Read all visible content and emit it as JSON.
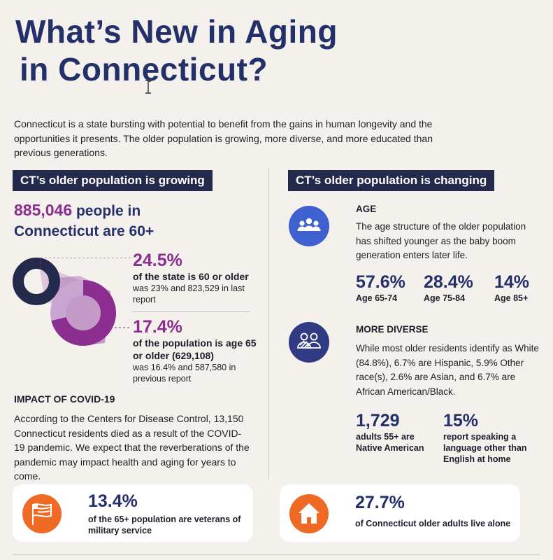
{
  "title": {
    "line1": "What’s New in Aging",
    "line2": "in Connecticut?"
  },
  "intro": "Connecticut is a state bursting with potential to benefit from the gains in human longevity and the opportunities it presents. The older population is growing, more diverse, and more educated than previous generations.",
  "left": {
    "heading": "CT’s older population is growing",
    "count_number": "885,046",
    "count_text_a": "people in",
    "count_text_b": "Connecticut are 60+",
    "stat1": {
      "pct": "24.5%",
      "bold": "of the state is 60 or older",
      "small": "was 23% and 823,529 in last report",
      "value": 24.5
    },
    "stat2": {
      "pct": "17.4%",
      "bold": "of the population is age 65 or older (629,108)",
      "small": "was 16.4% and 587,580 in previous report",
      "value": 17.4
    },
    "covid": {
      "heading": "IMPACT OF COVID-19",
      "body": "According to the Centers for Disease Control, 13,150 Connecticut residents died as a result of the COVID-19 pandemic. We expect that the reverberations of the pandemic may impact health and aging for years to come."
    }
  },
  "right": {
    "heading": "CT’s older population is changing",
    "age": {
      "heading": "AGE",
      "text": "The age structure of the older population has shifted younger as the baby boom generation enters later life.",
      "stats": [
        {
          "pct": "57.6%",
          "label": "Age 65-74"
        },
        {
          "pct": "28.4%",
          "label": "Age 75-84"
        },
        {
          "pct": "14%",
          "label": "Age 85+"
        }
      ]
    },
    "diverse": {
      "heading": "MORE DIVERSE",
      "text": "While most older residents identify as White (84.8%), 6.7% are Hispanic, 5.9% Other race(s), 2.6% are Asian, and 6.7% are African American/Black.",
      "stats": [
        {
          "pct": "1,729",
          "label": "adults 55+ are Native American"
        },
        {
          "pct": "15%",
          "label": "report speaking a language other than English at home"
        }
      ]
    }
  },
  "cards": {
    "veterans": {
      "pct": "13.4%",
      "desc": "of the 65+ population are veterans of military service",
      "icon": "flag-icon"
    },
    "alone": {
      "pct": "27.7%",
      "desc": "of Connecticut older adults live alone",
      "icon": "house-icon"
    }
  },
  "colors": {
    "navy": "#24306a",
    "purple": "#8b2e8f",
    "blue": "#3f60cf",
    "orange": "#ef6a24"
  }
}
